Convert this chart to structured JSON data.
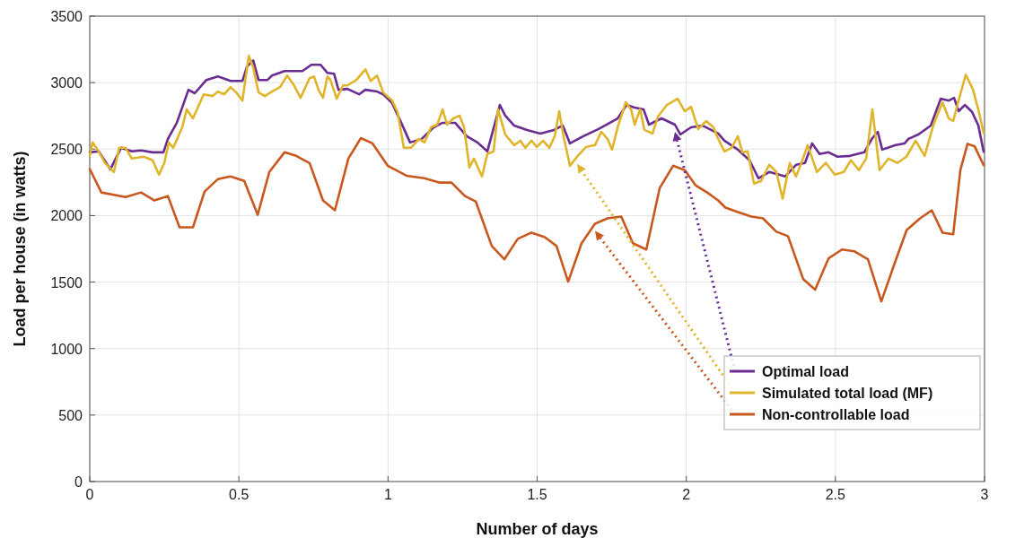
{
  "chart_data": {
    "type": "line",
    "xlabel": "Number of days",
    "ylabel": "Load per house (in watts)",
    "xlim": [
      0,
      3
    ],
    "xticks": [
      0,
      0.5,
      1,
      1.5,
      2,
      2.5,
      3
    ],
    "ylim": [
      0,
      3500
    ],
    "yticks": [
      0,
      500,
      1000,
      1500,
      2000,
      2500,
      3000,
      3500
    ],
    "grid": true,
    "legend": "bottom right",
    "line_style": "solid",
    "series": [
      {
        "name": "Optimal load",
        "color": "#6a2c91",
        "x": [
          0,
          0.03,
          0.069,
          0.105,
          0.141,
          0.172,
          0.211,
          0.247,
          0.262,
          0.292,
          0.331,
          0.352,
          0.391,
          0.43,
          0.472,
          0.512,
          0.527,
          0.548,
          0.566,
          0.596,
          0.611,
          0.653,
          0.713,
          0.743,
          0.774,
          0.797,
          0.819,
          0.834,
          0.864,
          0.903,
          0.924,
          0.963,
          0.984,
          1.014,
          1.044,
          1.074,
          1.113,
          1.153,
          1.183,
          1.225,
          1.264,
          1.3,
          1.333,
          1.375,
          1.393,
          1.423,
          1.466,
          1.511,
          1.556,
          1.586,
          1.61,
          1.655,
          1.706,
          1.77,
          1.8,
          1.827,
          1.857,
          1.875,
          1.917,
          1.962,
          1.98,
          2.016,
          2.055,
          2.107,
          2.128,
          2.173,
          2.212,
          2.242,
          2.278,
          2.332,
          2.368,
          2.398,
          2.422,
          2.447,
          2.477,
          2.507,
          2.549,
          2.597,
          2.624,
          2.642,
          2.657,
          2.702,
          2.732,
          2.745,
          2.778,
          2.82,
          2.853,
          2.88,
          2.898,
          2.913,
          2.934,
          2.958,
          2.979,
          2.997
        ],
        "values": [
          2476,
          2483,
          2348,
          2510,
          2483,
          2490,
          2476,
          2476,
          2577,
          2698,
          2946,
          2920,
          3020,
          3046,
          3013,
          3013,
          3120,
          3167,
          3020,
          3020,
          3053,
          3087,
          3087,
          3134,
          3134,
          3073,
          3067,
          2946,
          2953,
          2912,
          2946,
          2933,
          2912,
          2845,
          2700,
          2550,
          2577,
          2664,
          2698,
          2698,
          2597,
          2550,
          2483,
          2832,
          2752,
          2677,
          2644,
          2617,
          2644,
          2677,
          2543,
          2597,
          2651,
          2731,
          2832,
          2812,
          2798,
          2684,
          2731,
          2684,
          2610,
          2664,
          2677,
          2617,
          2563,
          2496,
          2416,
          2281,
          2328,
          2295,
          2382,
          2396,
          2543,
          2463,
          2476,
          2443,
          2449,
          2476,
          2583,
          2630,
          2496,
          2530,
          2543,
          2577,
          2610,
          2677,
          2879,
          2865,
          2886,
          2785,
          2832,
          2780,
          2680,
          2480
        ]
      },
      {
        "name": "Simulated total load (MF)",
        "color": "#e0b52c",
        "x": [
          0,
          0.009,
          0.03,
          0.051,
          0.081,
          0.099,
          0.12,
          0.141,
          0.181,
          0.211,
          0.232,
          0.25,
          0.265,
          0.28,
          0.31,
          0.325,
          0.346,
          0.382,
          0.412,
          0.43,
          0.451,
          0.472,
          0.491,
          0.512,
          0.533,
          0.548,
          0.566,
          0.587,
          0.611,
          0.638,
          0.662,
          0.683,
          0.707,
          0.737,
          0.752,
          0.767,
          0.782,
          0.797,
          0.807,
          0.828,
          0.849,
          0.864,
          0.894,
          0.924,
          0.942,
          0.963,
          0.984,
          1.014,
          1.032,
          1.053,
          1.077,
          1.104,
          1.122,
          1.144,
          1.165,
          1.183,
          1.198,
          1.219,
          1.24,
          1.255,
          1.273,
          1.288,
          1.315,
          1.333,
          1.354,
          1.369,
          1.393,
          1.423,
          1.444,
          1.46,
          1.481,
          1.499,
          1.52,
          1.541,
          1.559,
          1.574,
          1.589,
          1.61,
          1.634,
          1.664,
          1.694,
          1.715,
          1.736,
          1.751,
          1.77,
          1.797,
          1.815,
          1.827,
          1.845,
          1.86,
          1.887,
          1.905,
          1.935,
          1.971,
          1.995,
          2.016,
          2.04,
          2.067,
          2.091,
          2.107,
          2.128,
          2.152,
          2.173,
          2.188,
          2.206,
          2.227,
          2.251,
          2.278,
          2.302,
          2.323,
          2.347,
          2.368,
          2.386,
          2.407,
          2.438,
          2.468,
          2.498,
          2.528,
          2.552,
          2.579,
          2.603,
          2.624,
          2.648,
          2.678,
          2.708,
          2.738,
          2.769,
          2.799,
          2.829,
          2.859,
          2.88,
          2.895,
          2.913,
          2.937,
          2.961,
          2.979,
          2.997
        ],
        "values": [
          2449,
          2550,
          2483,
          2396,
          2328,
          2510,
          2510,
          2429,
          2443,
          2416,
          2308,
          2396,
          2550,
          2510,
          2664,
          2798,
          2731,
          2912,
          2899,
          2933,
          2912,
          2966,
          2926,
          2865,
          3201,
          3113,
          2926,
          2899,
          2933,
          2966,
          3053,
          2986,
          2886,
          3033,
          3046,
          2946,
          2886,
          3046,
          3020,
          2879,
          2979,
          2979,
          3020,
          3100,
          3013,
          3053,
          2926,
          2865,
          2778,
          2510,
          2510,
          2577,
          2550,
          2664,
          2684,
          2798,
          2684,
          2731,
          2752,
          2664,
          2362,
          2429,
          2295,
          2463,
          2483,
          2798,
          2610,
          2530,
          2563,
          2510,
          2563,
          2516,
          2563,
          2510,
          2597,
          2785,
          2590,
          2375,
          2443,
          2516,
          2530,
          2630,
          2577,
          2496,
          2664,
          2852,
          2798,
          2684,
          2798,
          2644,
          2617,
          2745,
          2832,
          2879,
          2785,
          2818,
          2651,
          2711,
          2664,
          2577,
          2483,
          2510,
          2597,
          2476,
          2483,
          2241,
          2261,
          2382,
          2328,
          2127,
          2396,
          2295,
          2396,
          2530,
          2328,
          2396,
          2308,
          2328,
          2416,
          2342,
          2429,
          2798,
          2342,
          2429,
          2396,
          2443,
          2563,
          2449,
          2684,
          2852,
          2731,
          2711,
          2865,
          3060,
          2950,
          2800,
          2620
        ]
      },
      {
        "name": "Non-controllable load",
        "color": "#c9581f",
        "x": [
          0,
          0.039,
          0.12,
          0.172,
          0.217,
          0.262,
          0.301,
          0.346,
          0.385,
          0.43,
          0.472,
          0.518,
          0.563,
          0.602,
          0.653,
          0.692,
          0.737,
          0.782,
          0.822,
          0.867,
          0.909,
          0.948,
          0.999,
          1.062,
          1.122,
          1.174,
          1.213,
          1.258,
          1.294,
          1.348,
          1.39,
          1.435,
          1.481,
          1.526,
          1.565,
          1.604,
          1.649,
          1.694,
          1.736,
          1.782,
          1.821,
          1.866,
          1.911,
          1.956,
          1.995,
          2.031,
          2.07,
          2.107,
          2.131,
          2.173,
          2.218,
          2.257,
          2.302,
          2.341,
          2.392,
          2.432,
          2.477,
          2.522,
          2.564,
          2.609,
          2.654,
          2.699,
          2.739,
          2.784,
          2.823,
          2.859,
          2.895,
          2.919,
          2.943,
          2.967,
          2.997
        ],
        "values": [
          2350,
          2174,
          2140,
          2174,
          2114,
          2147,
          1912,
          1912,
          2181,
          2275,
          2295,
          2261,
          2006,
          2328,
          2476,
          2449,
          2395,
          2114,
          2040,
          2429,
          2583,
          2543,
          2375,
          2300,
          2281,
          2248,
          2248,
          2147,
          2107,
          1771,
          1671,
          1825,
          1872,
          1838,
          1771,
          1503,
          1792,
          1939,
          1979,
          1993,
          1792,
          1745,
          2208,
          2375,
          2342,
          2228,
          2174,
          2114,
          2060,
          2026,
          1993,
          1979,
          1879,
          1845,
          1523,
          1443,
          1678,
          1745,
          1731,
          1671,
          1355,
          1644,
          1892,
          1979,
          2040,
          1872,
          1859,
          2342,
          2540,
          2520,
          2380
        ]
      }
    ]
  }
}
